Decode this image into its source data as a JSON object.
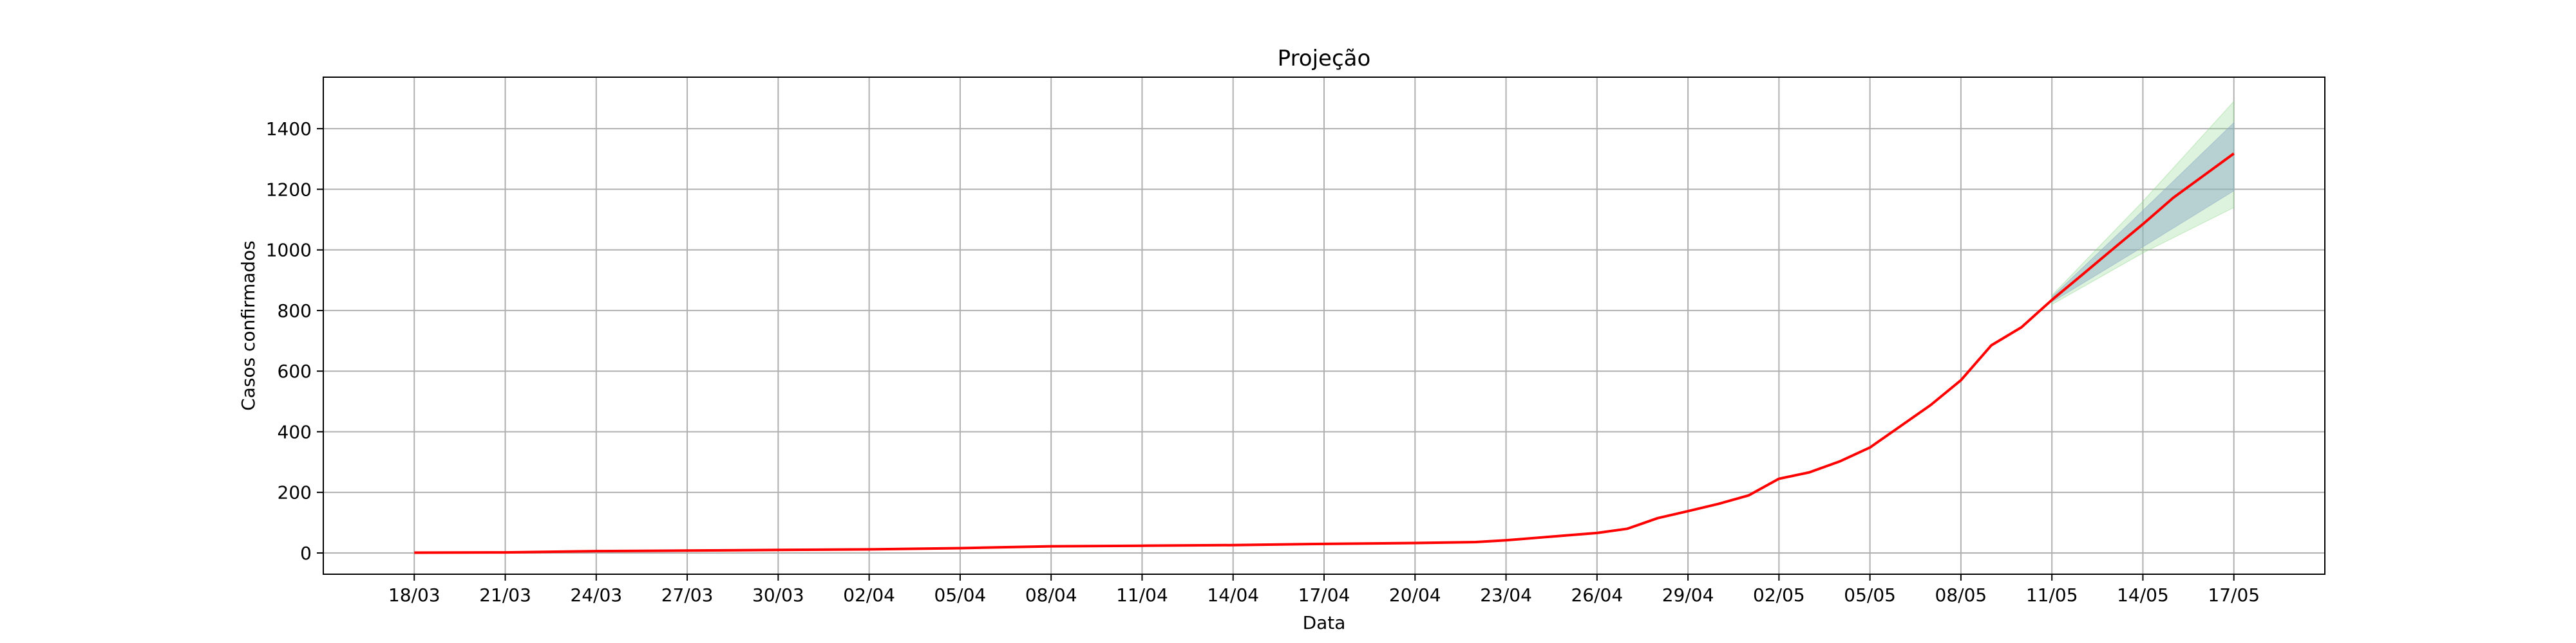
{
  "chart_data": {
    "type": "line",
    "title": "Projeção",
    "xlabel": "Data",
    "ylabel": "Casos confirmados",
    "grid": true,
    "ylim": [
      -70,
      1570
    ],
    "yticks": [
      0,
      200,
      400,
      600,
      800,
      1000,
      1200,
      1400
    ],
    "x_start": "18/03",
    "x_end": "17/05",
    "xtick_labels": [
      "18/03",
      "21/03",
      "24/03",
      "27/03",
      "30/03",
      "02/04",
      "05/04",
      "08/04",
      "11/04",
      "14/04",
      "17/04",
      "20/04",
      "23/04",
      "26/04",
      "29/04",
      "02/05",
      "05/05",
      "08/05",
      "11/05",
      "14/05",
      "17/05"
    ],
    "series": [
      {
        "color": "#ff0000",
        "x": [
          "18/03",
          "21/03",
          "24/03",
          "27/03",
          "30/03",
          "02/04",
          "05/04",
          "08/04",
          "11/04",
          "14/04",
          "17/04",
          "20/04",
          "22/04",
          "23/04",
          "24/04",
          "25/04",
          "26/04",
          "27/04",
          "28/04",
          "29/04",
          "30/04",
          "01/05",
          "02/05",
          "03/05",
          "04/05",
          "05/05",
          "06/05",
          "07/05",
          "08/05",
          "09/05",
          "10/05",
          "11/05",
          "12/05",
          "13/05",
          "14/05",
          "15/05",
          "16/05",
          "17/05"
        ],
        "y": [
          1,
          2,
          6,
          8,
          10,
          12,
          16,
          22,
          24,
          26,
          30,
          33,
          36,
          42,
          50,
          58,
          66,
          80,
          115,
          138,
          162,
          190,
          245,
          266,
          302,
          348,
          418,
          488,
          570,
          685,
          745,
          835,
          918,
          1002,
          1085,
          1172,
          1245,
          1318
        ]
      }
    ],
    "bands": [
      {
        "color": "#8fd88f",
        "x": [
          "11/05",
          "14/05",
          "17/05"
        ],
        "lower": [
          820,
          990,
          1140
        ],
        "upper": [
          850,
          1160,
          1490
        ]
      },
      {
        "color": "#8aa8c8",
        "x": [
          "11/05",
          "14/05",
          "17/05"
        ],
        "lower": [
          828,
          1010,
          1195
        ],
        "upper": [
          845,
          1130,
          1420
        ]
      }
    ]
  }
}
